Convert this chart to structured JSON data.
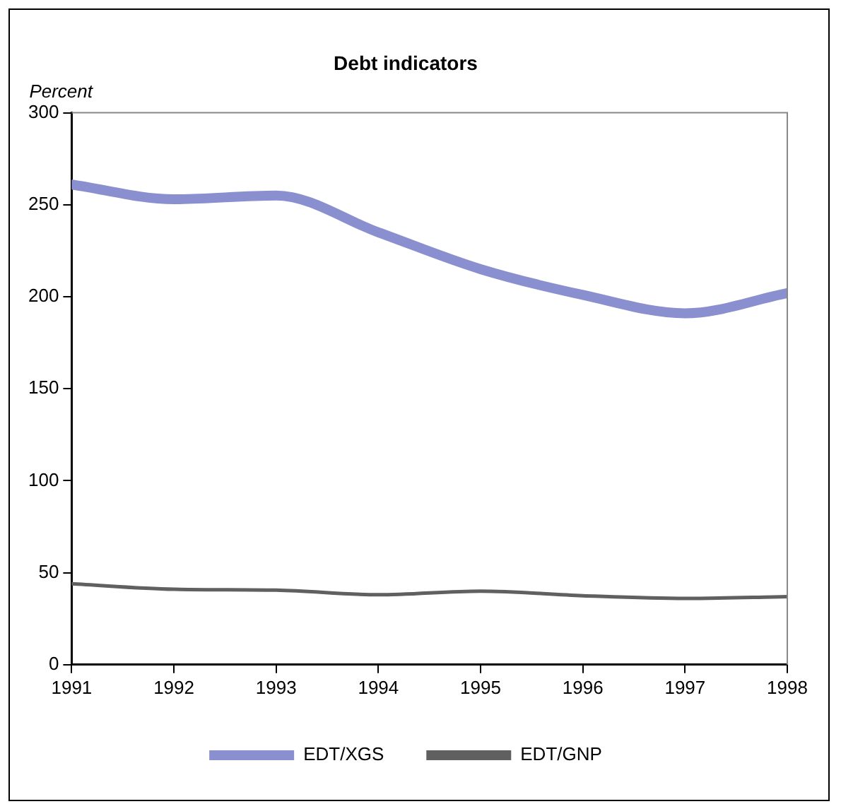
{
  "chart_data": {
    "type": "line",
    "title": "Debt indicators",
    "ylabel": "Percent",
    "x": [
      1991,
      1992,
      1993,
      1994,
      1995,
      1996,
      1997,
      1998
    ],
    "xlim": [
      1991,
      1998
    ],
    "xticks": [
      1991,
      1992,
      1993,
      1994,
      1995,
      1996,
      1997,
      1998
    ],
    "ylim": [
      0,
      300
    ],
    "yticks": [
      0,
      50,
      100,
      150,
      200,
      250,
      300
    ],
    "series": [
      {
        "name": "EDT/XGS",
        "color": "#8a8fd0",
        "values": [
          261,
          253,
          255,
          235,
          215,
          201,
          191,
          202
        ]
      },
      {
        "name": "EDT/GNP",
        "color": "#606060",
        "values": [
          44,
          41,
          40.5,
          38,
          40,
          37.5,
          36,
          37
        ]
      }
    ],
    "grid": false,
    "legend": "bottom",
    "marker": "none",
    "line_style": "solid"
  }
}
